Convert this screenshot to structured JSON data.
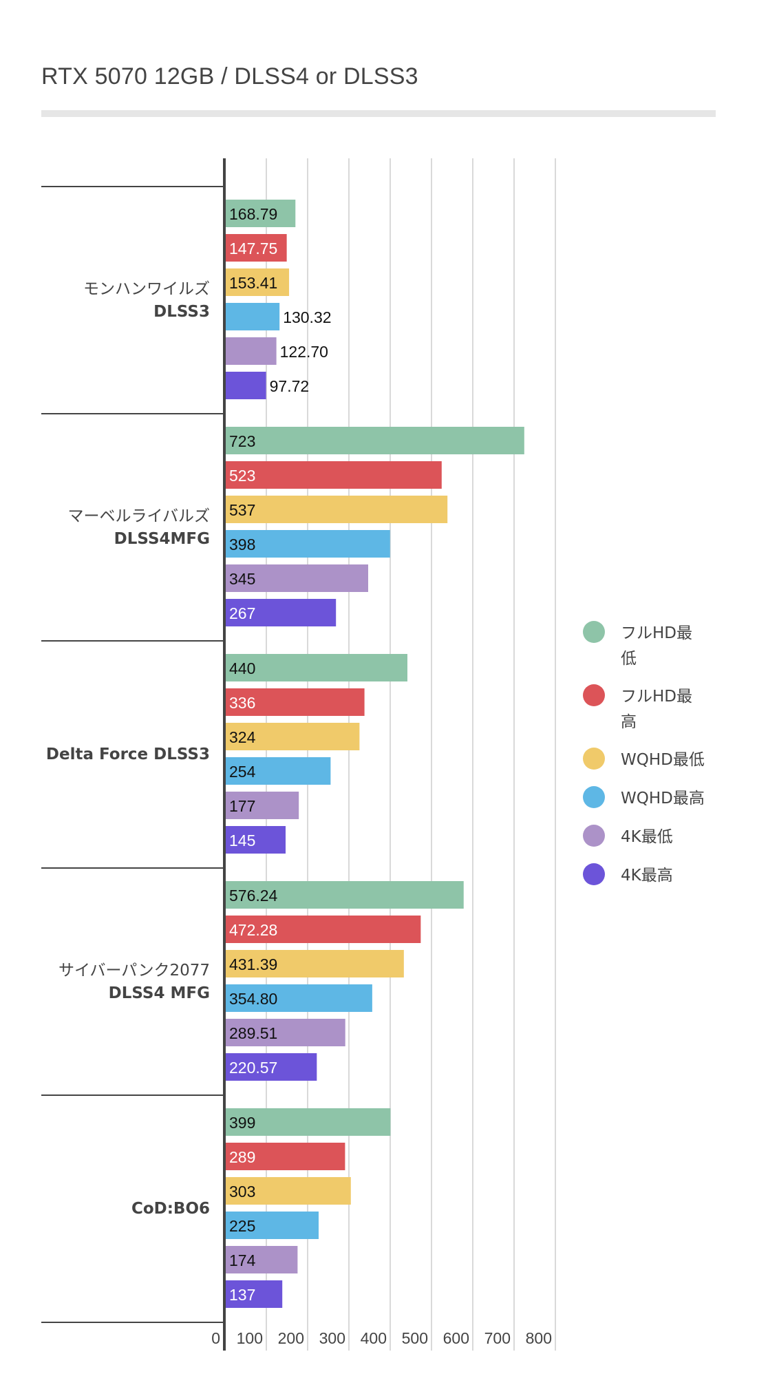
{
  "chart_data": {
    "type": "bar",
    "orientation": "horizontal",
    "title": "RTX 5070 12GB / DLSS4 or DLSS3",
    "xlabel": "",
    "ylabel": "",
    "xlim": [
      0,
      800
    ],
    "x_ticks": [
      0,
      100,
      200,
      300,
      400,
      500,
      600,
      700,
      800
    ],
    "x_tick_labels": [
      "0",
      "100",
      "200",
      "300",
      "400",
      "500",
      "600",
      "700",
      "800"
    ],
    "grid": true,
    "legend_position": "right",
    "categories": [
      {
        "line1": "モンハンワイルズ",
        "line2": "DLSS3"
      },
      {
        "line1": "マーベルライバルズ",
        "line2": "DLSS4MFG"
      },
      {
        "line1": "",
        "line2": "Delta Force DLSS3"
      },
      {
        "line1": "サイバーパンク2077",
        "line2": "DLSS4 MFG"
      },
      {
        "line1": "",
        "line2": "CoD:BO6"
      }
    ],
    "series": [
      {
        "name": "フルHD最低",
        "legend_lines": [
          "フルHD最",
          "低"
        ],
        "color": "#8ec4a8",
        "label_color": "#111111",
        "values": [
          168.79,
          723,
          440,
          576.24,
          399
        ],
        "labels": [
          "168.79",
          "723",
          "440",
          "576.24",
          "399"
        ]
      },
      {
        "name": "フルHD最高",
        "legend_lines": [
          "フルHD最",
          "高"
        ],
        "color": "#dc5458",
        "label_color": "#ffffff",
        "values": [
          147.75,
          523,
          336,
          472.28,
          289
        ],
        "labels": [
          "147.75",
          "523",
          "336",
          "472.28",
          "289"
        ]
      },
      {
        "name": "WQHD最低",
        "legend_lines": [
          "WQHD最低"
        ],
        "color": "#f0ca6a",
        "label_color": "#111111",
        "values": [
          153.41,
          537,
          324,
          431.39,
          303
        ],
        "labels": [
          "153.41",
          "537",
          "324",
          "431.39",
          "303"
        ]
      },
      {
        "name": "WQHD最高",
        "legend_lines": [
          "WQHD最高"
        ],
        "color": "#5eb7e5",
        "label_color": "#111111",
        "values": [
          130.32,
          398,
          254,
          354.8,
          225
        ],
        "labels": [
          "130.32",
          "398",
          "254",
          "354.80",
          "225"
        ]
      },
      {
        "name": "4K最低",
        "legend_lines": [
          "4K最低"
        ],
        "color": "#ac92c8",
        "label_color": "#111111",
        "values": [
          122.7,
          345,
          177,
          289.51,
          174
        ],
        "labels": [
          "122.70",
          "345",
          "177",
          "289.51",
          "174"
        ]
      },
      {
        "name": "4K最高",
        "legend_lines": [
          "4K最高"
        ],
        "color": "#6c54d9",
        "label_color": "#ffffff",
        "values": [
          97.72,
          267,
          145,
          220.57,
          137
        ],
        "labels": [
          "97.72",
          "267",
          "145",
          "220.57",
          "137"
        ]
      }
    ]
  }
}
